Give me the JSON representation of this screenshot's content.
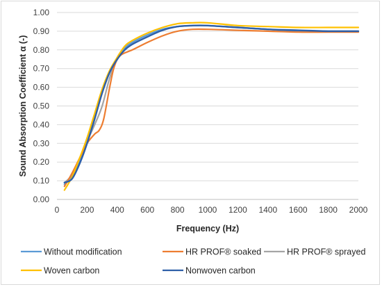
{
  "chart_data": {
    "type": "line",
    "title": "",
    "xlabel": "Frequency (Hz)",
    "ylabel": "Sound Absorption Coefficient α (-)",
    "xlim": [
      0,
      2000
    ],
    "ylim": [
      0,
      1.0
    ],
    "xticks": [
      "0",
      "200",
      "400",
      "600",
      "800",
      "1000",
      "1200",
      "1400",
      "1600",
      "1800",
      "2000"
    ],
    "yticks": [
      "0.00",
      "0.10",
      "0.20",
      "0.30",
      "0.40",
      "0.50",
      "0.60",
      "0.70",
      "0.80",
      "0.90",
      "1.00"
    ],
    "grid": "horizontal",
    "legend_position": "bottom",
    "series": [
      {
        "name": "Without modification",
        "color": "#5B9BD5",
        "points": [
          [
            50,
            0.08
          ],
          [
            100,
            0.13
          ],
          [
            150,
            0.2
          ],
          [
            200,
            0.31
          ],
          [
            250,
            0.44
          ],
          [
            300,
            0.57
          ],
          [
            350,
            0.68
          ],
          [
            400,
            0.75
          ],
          [
            450,
            0.81
          ],
          [
            500,
            0.84
          ],
          [
            600,
            0.88
          ],
          [
            700,
            0.91
          ],
          [
            800,
            0.925
          ],
          [
            900,
            0.93
          ],
          [
            1000,
            0.93
          ],
          [
            1200,
            0.92
          ],
          [
            1400,
            0.91
          ],
          [
            1600,
            0.9
          ],
          [
            1800,
            0.9
          ],
          [
            2000,
            0.9
          ]
        ]
      },
      {
        "name": "HR PROF® soaked",
        "color": "#ED7D31",
        "points": [
          [
            50,
            0.07
          ],
          [
            100,
            0.14
          ],
          [
            150,
            0.22
          ],
          [
            200,
            0.3
          ],
          [
            250,
            0.35
          ],
          [
            280,
            0.37
          ],
          [
            310,
            0.43
          ],
          [
            350,
            0.6
          ],
          [
            380,
            0.71
          ],
          [
            420,
            0.77
          ],
          [
            500,
            0.8
          ],
          [
            600,
            0.84
          ],
          [
            700,
            0.875
          ],
          [
            800,
            0.9
          ],
          [
            900,
            0.91
          ],
          [
            1000,
            0.91
          ],
          [
            1200,
            0.905
          ],
          [
            1400,
            0.9
          ],
          [
            1600,
            0.895
          ],
          [
            1800,
            0.895
          ],
          [
            2000,
            0.895
          ]
        ]
      },
      {
        "name": "HR PROF® sprayed",
        "color": "#A5A5A5",
        "points": [
          [
            50,
            0.09
          ],
          [
            100,
            0.13
          ],
          [
            150,
            0.21
          ],
          [
            200,
            0.31
          ],
          [
            250,
            0.4
          ],
          [
            300,
            0.5
          ],
          [
            350,
            0.65
          ],
          [
            400,
            0.76
          ],
          [
            450,
            0.81
          ],
          [
            500,
            0.84
          ],
          [
            600,
            0.88
          ],
          [
            700,
            0.91
          ],
          [
            800,
            0.925
          ],
          [
            900,
            0.93
          ],
          [
            1000,
            0.93
          ],
          [
            1200,
            0.92
          ],
          [
            1400,
            0.91
          ],
          [
            1600,
            0.9
          ],
          [
            1800,
            0.9
          ],
          [
            2000,
            0.9
          ]
        ]
      },
      {
        "name": "Woven carbon",
        "color": "#FFC000",
        "points": [
          [
            50,
            0.05
          ],
          [
            100,
            0.12
          ],
          [
            150,
            0.22
          ],
          [
            200,
            0.33
          ],
          [
            250,
            0.46
          ],
          [
            300,
            0.59
          ],
          [
            350,
            0.69
          ],
          [
            400,
            0.76
          ],
          [
            450,
            0.82
          ],
          [
            500,
            0.85
          ],
          [
            600,
            0.89
          ],
          [
            700,
            0.92
          ],
          [
            800,
            0.94
          ],
          [
            900,
            0.945
          ],
          [
            1000,
            0.945
          ],
          [
            1200,
            0.93
          ],
          [
            1400,
            0.925
          ],
          [
            1600,
            0.92
          ],
          [
            1800,
            0.92
          ],
          [
            2000,
            0.92
          ]
        ]
      },
      {
        "name": "Nonwoven carbon",
        "color": "#2E5FA8",
        "points": [
          [
            50,
            0.09
          ],
          [
            100,
            0.11
          ],
          [
            150,
            0.19
          ],
          [
            200,
            0.3
          ],
          [
            250,
            0.43
          ],
          [
            300,
            0.57
          ],
          [
            350,
            0.68
          ],
          [
            400,
            0.75
          ],
          [
            450,
            0.8
          ],
          [
            500,
            0.83
          ],
          [
            600,
            0.87
          ],
          [
            700,
            0.905
          ],
          [
            800,
            0.925
          ],
          [
            900,
            0.93
          ],
          [
            1000,
            0.93
          ],
          [
            1200,
            0.92
          ],
          [
            1400,
            0.91
          ],
          [
            1600,
            0.905
          ],
          [
            1800,
            0.9
          ],
          [
            2000,
            0.9
          ]
        ]
      }
    ]
  }
}
